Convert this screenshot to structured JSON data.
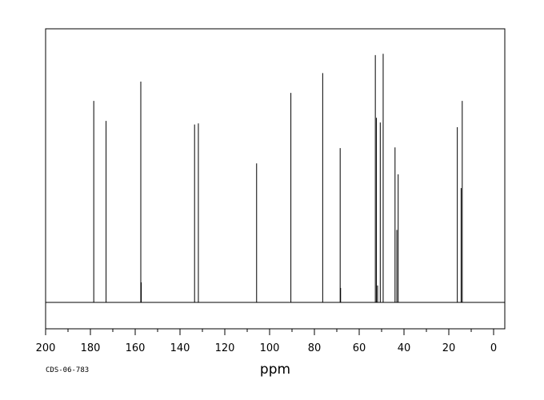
{
  "chart_data": {
    "type": "line",
    "title": "",
    "xlabel": "ppm",
    "ylabel": "",
    "xlim": [
      200,
      -5
    ],
    "x_reversed": true,
    "grid": false,
    "x_ticks": [
      200,
      180,
      160,
      140,
      120,
      100,
      80,
      60,
      40,
      20,
      0
    ],
    "tick_labels": [
      "200",
      "180",
      "160",
      "140",
      "120",
      "100",
      "80",
      "60",
      "40",
      "20",
      "0"
    ],
    "peaks": [
      {
        "ppm": 178.5,
        "intensity": 0.906
      },
      {
        "ppm": 173.0,
        "intensity": 0.816
      },
      {
        "ppm": 157.5,
        "intensity": 0.993
      },
      {
        "ppm": 157.3,
        "intensity": 0.09
      },
      {
        "ppm": 133.5,
        "intensity": 0.8
      },
      {
        "ppm": 131.8,
        "intensity": 0.805
      },
      {
        "ppm": 105.8,
        "intensity": 0.625
      },
      {
        "ppm": 90.5,
        "intensity": 0.942
      },
      {
        "ppm": 76.3,
        "intensity": 1.031
      },
      {
        "ppm": 68.5,
        "intensity": 0.694
      },
      {
        "ppm": 68.3,
        "intensity": 0.065
      },
      {
        "ppm": 52.8,
        "intensity": 1.112
      },
      {
        "ppm": 52.3,
        "intensity": 0.83
      },
      {
        "ppm": 51.8,
        "intensity": 0.076
      },
      {
        "ppm": 50.6,
        "intensity": 0.809
      },
      {
        "ppm": 49.3,
        "intensity": 1.118
      },
      {
        "ppm": 44.0,
        "intensity": 0.697
      },
      {
        "ppm": 43.2,
        "intensity": 0.326
      },
      {
        "ppm": 42.6,
        "intensity": 0.576
      },
      {
        "ppm": 16.2,
        "intensity": 0.788
      },
      {
        "ppm": 14.5,
        "intensity": 0.514
      },
      {
        "ppm": 14.0,
        "intensity": 0.906
      }
    ]
  },
  "footer": {
    "code": "CDS-06-783"
  }
}
